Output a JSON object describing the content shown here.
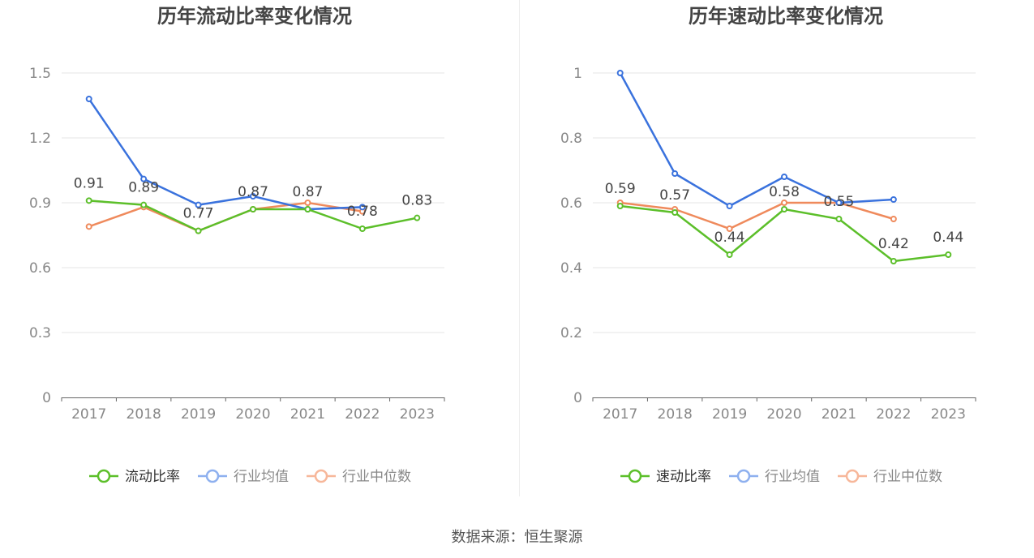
{
  "source": "数据来源：恒生聚源",
  "colors": {
    "company": "#5cbf2a",
    "industry_avg": "#3a72dd",
    "industry_median": "#ef8a5c",
    "legend_avg": "#8eb0ef",
    "legend_median": "#f7b79a",
    "grid": "#e6e6e6",
    "axis": "#666666"
  },
  "chart_data": [
    {
      "type": "line",
      "title": "历年流动比率变化情况",
      "categories": [
        "2017",
        "2018",
        "2019",
        "2020",
        "2021",
        "2022",
        "2023"
      ],
      "ylim": [
        0,
        1.5
      ],
      "yticks": [
        "0",
        "0.3",
        "0.6",
        "0.9",
        "1.2",
        "1.5"
      ],
      "grid": true,
      "legend_position": "bottom",
      "series": [
        {
          "name": "流动比率",
          "values": [
            0.91,
            0.89,
            0.77,
            0.87,
            0.87,
            0.78,
            0.83
          ],
          "labels": [
            "0.91",
            "0.89",
            "0.77",
            "0.87",
            "0.87",
            "0.78",
            "0.83"
          ]
        },
        {
          "name": "行业均值",
          "values": [
            1.38,
            1.01,
            0.89,
            0.93,
            0.87,
            0.88,
            null
          ]
        },
        {
          "name": "行业中位数",
          "values": [
            0.79,
            0.88,
            0.77,
            0.87,
            0.9,
            0.86,
            null
          ]
        }
      ]
    },
    {
      "type": "line",
      "title": "历年速动比率变化情况",
      "categories": [
        "2017",
        "2018",
        "2019",
        "2020",
        "2021",
        "2022",
        "2023"
      ],
      "ylim": [
        0,
        1
      ],
      "yticks": [
        "0",
        "0.2",
        "0.4",
        "0.6",
        "0.8",
        "1"
      ],
      "grid": true,
      "legend_position": "bottom",
      "series": [
        {
          "name": "速动比率",
          "values": [
            0.59,
            0.57,
            0.44,
            0.58,
            0.55,
            0.42,
            0.44
          ],
          "labels": [
            "0.59",
            "0.57",
            "0.44",
            "0.58",
            "0.55",
            "0.42",
            "0.44"
          ]
        },
        {
          "name": "行业均值",
          "values": [
            1.0,
            0.69,
            0.59,
            0.68,
            0.6,
            0.61,
            null
          ]
        },
        {
          "name": "行业中位数",
          "values": [
            0.6,
            0.58,
            0.52,
            0.6,
            0.6,
            0.55,
            null
          ]
        }
      ]
    }
  ]
}
